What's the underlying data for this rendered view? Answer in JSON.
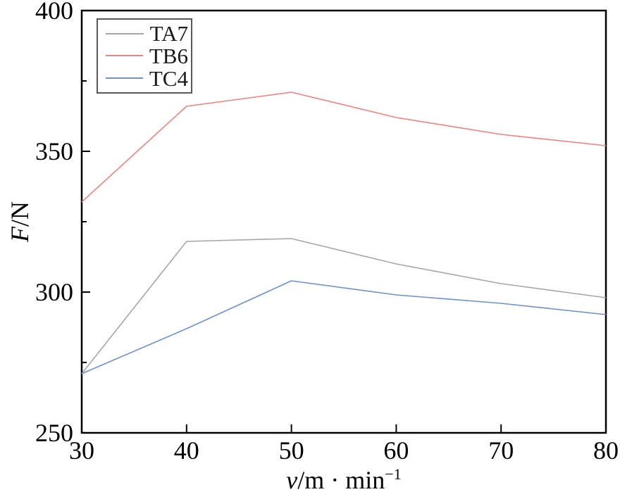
{
  "figure": {
    "background": "#ffffff",
    "axis_color": "#000000"
  },
  "chart_data": {
    "type": "line",
    "title": "",
    "xlabel": "v/m · min−1",
    "ylabel": "F/N",
    "xlabel_parts": {
      "variable": "v",
      "unit": "/m · min",
      "exponent": "−1"
    },
    "ylabel_parts": {
      "variable": "F",
      "unit": "/N"
    },
    "x": [
      30,
      40,
      50,
      60,
      70,
      80
    ],
    "series": [
      {
        "name": "TA7",
        "color": "#a6a6a6",
        "values": [
          271,
          318,
          319,
          310,
          303,
          298
        ]
      },
      {
        "name": "TB6",
        "color": "#f57f7c",
        "values": [
          332,
          366,
          371,
          362,
          356,
          352
        ]
      },
      {
        "name": "TC4",
        "color": "#6a92d4",
        "values": [
          271,
          287,
          304,
          299,
          296,
          292
        ]
      }
    ],
    "xlim": [
      30,
      80
    ],
    "ylim": [
      250,
      400
    ],
    "xticks": [
      30,
      40,
      50,
      60,
      70,
      80
    ],
    "yticks_major": [
      250,
      300,
      350,
      400
    ],
    "yticks_minor": [
      275,
      325,
      375
    ],
    "grid": false,
    "legend_position": "top-left",
    "legend_border_color": "#595959"
  }
}
